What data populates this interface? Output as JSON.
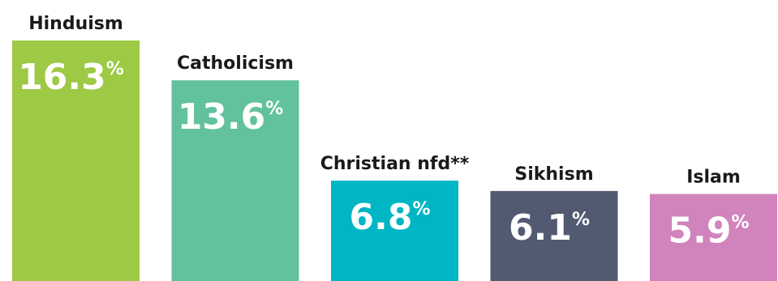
{
  "chart_data": {
    "type": "bar",
    "categories": [
      "Hinduism",
      "Catholicism",
      "Christian nfd**",
      "Sikhism",
      "Islam"
    ],
    "values": [
      16.3,
      13.6,
      6.8,
      6.1,
      5.9
    ],
    "unit": "%",
    "value_labels": [
      "16.3",
      "13.6",
      "6.8",
      "6.1",
      "5.9"
    ],
    "colors": [
      "#9DC944",
      "#62C29C",
      "#00B5C4",
      "#525A72",
      "#D183BC"
    ],
    "title": "",
    "xlabel": "",
    "ylabel": "",
    "ylim": [
      0,
      16.3
    ],
    "grid": false,
    "legend": "none"
  }
}
